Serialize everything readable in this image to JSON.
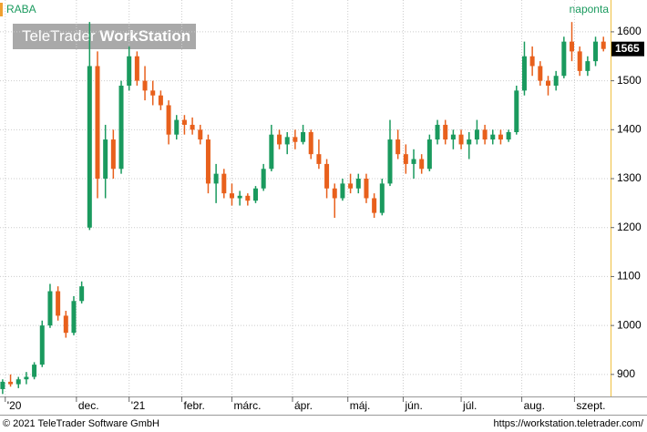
{
  "chart_data": {
    "type": "candlestick",
    "title": "RABA",
    "subtitle": "naponta",
    "watermark": {
      "brand": "TeleTrader",
      "product": "WorkStation"
    },
    "footer": {
      "copyright": "© 2021 TeleTrader Software GmbH",
      "url": "https://workstation.teletrader.com/"
    },
    "x": [
      0,
      3,
      6,
      9,
      12,
      15,
      18,
      21,
      24,
      27,
      30,
      33,
      36,
      39,
      42,
      45,
      48,
      51,
      54,
      57,
      60,
      63,
      66,
      69,
      72,
      75,
      78,
      81,
      84,
      87,
      90,
      93,
      96,
      99,
      102,
      105,
      108,
      111,
      114,
      117,
      120,
      123,
      126,
      129,
      132,
      135,
      138,
      141,
      144,
      147,
      150,
      153,
      156,
      159,
      162,
      165,
      168,
      171,
      174,
      177,
      180,
      183,
      186,
      189,
      192,
      195,
      198,
      201,
      204,
      207,
      210,
      213,
      216,
      219,
      222,
      225,
      228
    ],
    "open": [
      870,
      885,
      880,
      890,
      895,
      920,
      1000,
      1070,
      1020,
      985,
      1050,
      1200,
      1530,
      1300,
      1380,
      1320,
      1490,
      1550,
      1500,
      1480,
      1470,
      1450,
      1390,
      1420,
      1410,
      1400,
      1380,
      1290,
      1310,
      1270,
      1260,
      1265,
      1255,
      1280,
      1320,
      1390,
      1370,
      1385,
      1375,
      1395,
      1350,
      1330,
      1280,
      1260,
      1290,
      1280,
      1300,
      1260,
      1230,
      1290,
      1380,
      1350,
      1330,
      1340,
      1320,
      1380,
      1410,
      1380,
      1390,
      1370,
      1380,
      1400,
      1380,
      1390,
      1380,
      1395,
      1480,
      1550,
      1530,
      1500,
      1490,
      1510,
      1580,
      1560,
      1520,
      1540,
      1580
    ],
    "high": [
      890,
      900,
      895,
      905,
      925,
      1010,
      1085,
      1080,
      1030,
      1060,
      1090,
      1620,
      1560,
      1410,
      1400,
      1500,
      1570,
      1560,
      1530,
      1500,
      1480,
      1460,
      1430,
      1430,
      1425,
      1410,
      1390,
      1330,
      1320,
      1290,
      1275,
      1270,
      1285,
      1330,
      1410,
      1400,
      1395,
      1400,
      1410,
      1400,
      1380,
      1340,
      1290,
      1300,
      1310,
      1310,
      1310,
      1270,
      1300,
      1420,
      1400,
      1370,
      1360,
      1350,
      1390,
      1420,
      1420,
      1400,
      1400,
      1395,
      1420,
      1410,
      1400,
      1400,
      1400,
      1490,
      1580,
      1570,
      1540,
      1510,
      1520,
      1590,
      1620,
      1570,
      1550,
      1590,
      1590
    ],
    "low": [
      860,
      875,
      872,
      880,
      890,
      915,
      995,
      1010,
      975,
      980,
      1045,
      1195,
      1260,
      1260,
      1300,
      1310,
      1480,
      1490,
      1460,
      1450,
      1440,
      1370,
      1380,
      1390,
      1390,
      1370,
      1270,
      1250,
      1260,
      1245,
      1245,
      1245,
      1250,
      1275,
      1315,
      1360,
      1350,
      1360,
      1370,
      1340,
      1320,
      1260,
      1220,
      1255,
      1270,
      1270,
      1250,
      1220,
      1225,
      1285,
      1340,
      1310,
      1300,
      1310,
      1315,
      1370,
      1370,
      1360,
      1360,
      1340,
      1370,
      1370,
      1370,
      1370,
      1375,
      1390,
      1470,
      1510,
      1490,
      1470,
      1480,
      1505,
      1540,
      1510,
      1510,
      1530,
      1560
    ],
    "close": [
      885,
      880,
      890,
      895,
      920,
      1000,
      1070,
      1020,
      985,
      1050,
      1080,
      1530,
      1300,
      1380,
      1320,
      1490,
      1550,
      1500,
      1480,
      1470,
      1450,
      1390,
      1420,
      1410,
      1400,
      1380,
      1290,
      1310,
      1270,
      1260,
      1265,
      1255,
      1280,
      1320,
      1390,
      1370,
      1385,
      1375,
      1395,
      1350,
      1330,
      1280,
      1260,
      1290,
      1280,
      1300,
      1260,
      1230,
      1290,
      1380,
      1350,
      1330,
      1340,
      1320,
      1380,
      1410,
      1380,
      1390,
      1370,
      1380,
      1400,
      1380,
      1390,
      1380,
      1395,
      1480,
      1550,
      1530,
      1500,
      1490,
      1510,
      1580,
      1560,
      1520,
      1540,
      1580,
      1565
    ],
    "up_color": "#1a9a5e",
    "down_color": "#e8601c",
    "xlim": [
      -1,
      230
    ],
    "xticks": [
      {
        "value": 1,
        "label": "'20"
      },
      {
        "value": 28,
        "label": "dec."
      },
      {
        "value": 48,
        "label": "'21"
      },
      {
        "value": 68,
        "label": "febr."
      },
      {
        "value": 87,
        "label": "márc."
      },
      {
        "value": 110,
        "label": "ápr."
      },
      {
        "value": 131,
        "label": "máj."
      },
      {
        "value": 152,
        "label": "jún."
      },
      {
        "value": 174,
        "label": "júl."
      },
      {
        "value": 197,
        "label": "aug."
      },
      {
        "value": 217,
        "label": "szept."
      }
    ],
    "ylim": [
      855,
      1665
    ],
    "yticks": [
      900,
      1000,
      1100,
      1200,
      1300,
      1400,
      1500,
      1600
    ],
    "grid": true
  }
}
